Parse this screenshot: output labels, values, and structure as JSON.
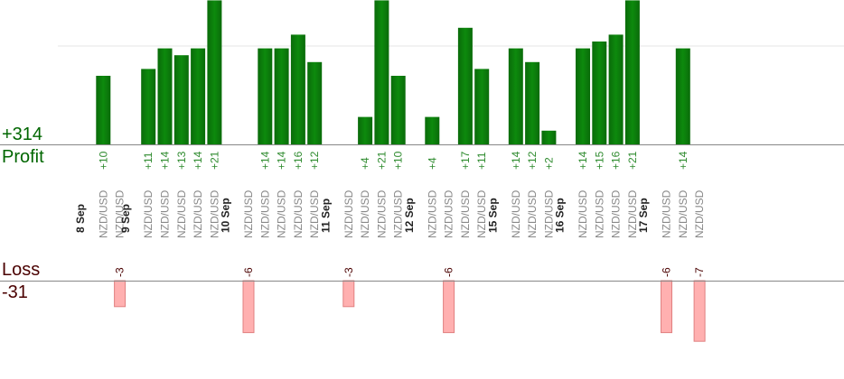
{
  "colors": {
    "profit_bar": "#0a6b0a",
    "profit_bar_light": "#0d8a0d",
    "profit_label": "#2e8b2e",
    "loss_bar": "#ffb0b0",
    "loss_bar_border": "#e08080",
    "loss_label": "#4a0000",
    "date_label": "#222222",
    "pair_label": "#888888",
    "axis_line": "#888888",
    "grid_line": "#e6e6e6"
  },
  "summary": {
    "profit_total": "+314",
    "profit_caption": "Profit",
    "loss_caption": "Loss",
    "loss_total": "-31"
  },
  "chart_data": {
    "type": "bar",
    "grid": "one faint horizontal gridline in the profit area",
    "days": [
      {
        "date": "8 Sep",
        "trades": [
          {
            "pair": "NZD/USD",
            "result": 10
          },
          {
            "pair": "NZD/USD",
            "result": -3
          }
        ]
      },
      {
        "date": "9 Sep",
        "trades": [
          {
            "pair": "NZD/USD",
            "result": 11
          },
          {
            "pair": "NZD/USD",
            "result": 14
          },
          {
            "pair": "NZD/USD",
            "result": 13
          },
          {
            "pair": "NZD/USD",
            "result": 14
          },
          {
            "pair": "NZD/USD",
            "result": 21
          }
        ]
      },
      {
        "date": "10 Sep",
        "trades": [
          {
            "pair": "NZD/USD",
            "result": -6
          },
          {
            "pair": "NZD/USD",
            "result": 14
          },
          {
            "pair": "NZD/USD",
            "result": 14
          },
          {
            "pair": "NZD/USD",
            "result": 16
          },
          {
            "pair": "NZD/USD",
            "result": 12
          }
        ]
      },
      {
        "date": "11 Sep",
        "trades": [
          {
            "pair": "NZD/USD",
            "result": -3
          },
          {
            "pair": "NZD/USD",
            "result": 4
          },
          {
            "pair": "NZD/USD",
            "result": 21
          },
          {
            "pair": "NZD/USD",
            "result": 10
          }
        ]
      },
      {
        "date": "12 Sep",
        "trades": [
          {
            "pair": "NZD/USD",
            "result": 4
          },
          {
            "pair": "NZD/USD",
            "result": -6
          },
          {
            "pair": "NZD/USD",
            "result": 17
          },
          {
            "pair": "NZD/USD",
            "result": 11
          }
        ]
      },
      {
        "date": "15 Sep",
        "trades": [
          {
            "pair": "NZD/USD",
            "result": 14
          },
          {
            "pair": "NZD/USD",
            "result": 12
          },
          {
            "pair": "NZD/USD",
            "result": 2
          }
        ]
      },
      {
        "date": "16 Sep",
        "trades": [
          {
            "pair": "NZD/USD",
            "result": 14
          },
          {
            "pair": "NZD/USD",
            "result": 15
          },
          {
            "pair": "NZD/USD",
            "result": 16
          },
          {
            "pair": "NZD/USD",
            "result": 21
          }
        ]
      },
      {
        "date": "17 Sep",
        "trades": [
          {
            "pair": "NZD/USD",
            "result": -6
          },
          {
            "pair": "NZD/USD",
            "result": 14
          },
          {
            "pair": "NZD/USD",
            "result": -7
          }
        ]
      }
    ]
  }
}
